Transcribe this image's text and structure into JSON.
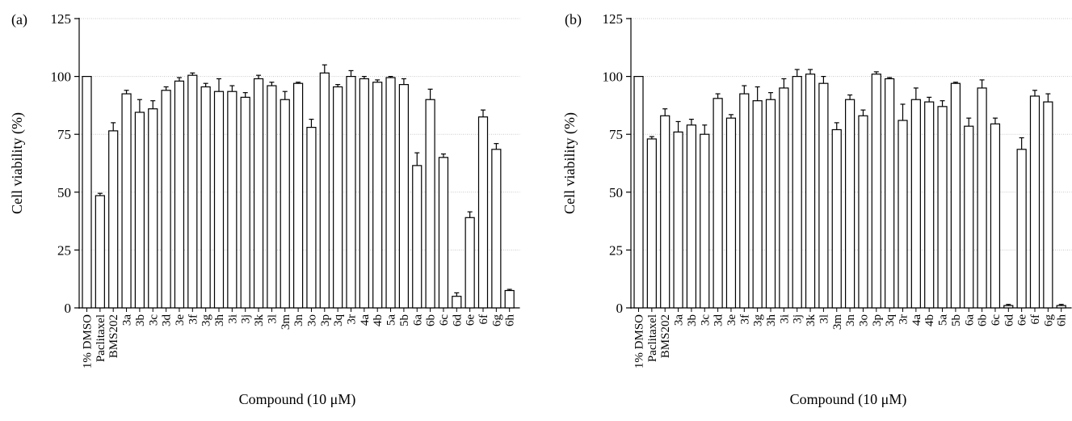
{
  "chart_data": [
    {
      "type": "bar",
      "panel_label": "(a)",
      "xlabel": "Compound (10 μM)",
      "ylabel": "Cell viability (%)",
      "ylim": [
        0,
        125
      ],
      "yticks": [
        0,
        25,
        50,
        75,
        100,
        125
      ],
      "grid": true,
      "categories": [
        "1% DMSO",
        "Paclitaxel",
        "BMS202",
        "3a",
        "3b",
        "3c",
        "3d",
        "3e",
        "3f",
        "3g",
        "3h",
        "3i",
        "3j",
        "3k",
        "3l",
        "3m",
        "3n",
        "3o",
        "3p",
        "3q",
        "3r",
        "4a",
        "4b",
        "5a",
        "5b",
        "6a",
        "6b",
        "6c",
        "6d",
        "6e",
        "6f",
        "6g",
        "6h"
      ],
      "values": [
        100,
        48.5,
        76.5,
        92.5,
        84.5,
        86,
        94,
        98,
        100.5,
        95.5,
        93.5,
        93.5,
        91,
        99,
        96,
        90,
        97,
        78,
        101.5,
        95.5,
        100,
        99,
        97.5,
        99.5,
        96.5,
        61.5,
        90,
        65,
        5,
        39,
        82.5,
        68.5,
        7.5
      ],
      "errors": [
        0,
        1,
        3.5,
        1.5,
        5.5,
        3.5,
        1.5,
        1.5,
        1,
        1.5,
        5.5,
        2.5,
        2,
        1.5,
        1.5,
        3.5,
        0.5,
        3.5,
        3.5,
        1,
        2.5,
        1,
        1,
        0.5,
        2.5,
        5.5,
        4.5,
        1.5,
        1.5,
        2.5,
        3,
        2.5,
        0.5
      ]
    },
    {
      "type": "bar",
      "panel_label": "(b)",
      "xlabel": "Compound (10 μM)",
      "ylabel": "Cell viability (%)",
      "ylim": [
        0,
        125
      ],
      "yticks": [
        0,
        25,
        50,
        75,
        100,
        125
      ],
      "grid": true,
      "categories": [
        "1% DMSO",
        "Paclitaxel",
        "BMS202",
        "3a",
        "3b",
        "3c",
        "3d",
        "3e",
        "3f",
        "3g",
        "3h",
        "3i",
        "3j",
        "3k",
        "3l",
        "3m",
        "3n",
        "3o",
        "3p",
        "3q",
        "3r",
        "4a",
        "4b",
        "5a",
        "5b",
        "6a",
        "6b",
        "6c",
        "6d",
        "6e",
        "6f",
        "6g",
        "6h"
      ],
      "values": [
        100,
        73,
        83,
        76,
        79,
        75,
        90.5,
        82,
        92.5,
        89.5,
        90,
        95,
        100,
        101,
        97,
        77,
        90,
        83,
        101,
        99,
        81,
        90,
        89,
        87,
        97,
        78.5,
        95,
        79.5,
        1,
        68.5,
        91.5,
        89,
        1
      ],
      "errors": [
        0,
        1,
        3,
        4.5,
        2.5,
        4,
        2,
        1.5,
        3.5,
        6,
        3,
        4,
        3,
        2,
        3,
        3,
        2,
        2.5,
        1,
        0.5,
        7,
        5,
        2,
        2.5,
        0.5,
        3.5,
        3.5,
        2.5,
        0.5,
        5,
        2.5,
        3.5,
        0.5
      ]
    }
  ]
}
